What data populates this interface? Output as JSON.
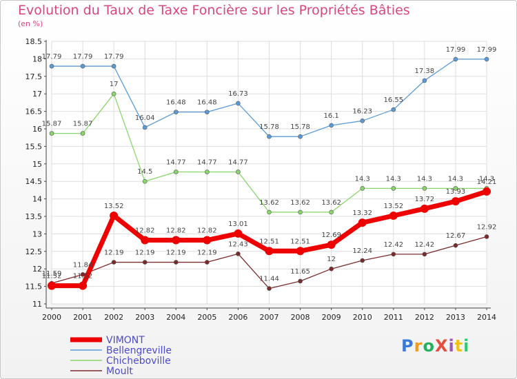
{
  "title": "Evolution du Taux de Taxe Foncière sur les Propriétés Bâties",
  "subtitle": "(en %)",
  "logo": "ProXiti",
  "chart_data": {
    "type": "line",
    "title": "Evolution du Taux de Taxe Foncière sur les Propriétés Bâties",
    "ylabel": "(en %)",
    "xlabel": "",
    "x": [
      "2000",
      "2001",
      "2002",
      "2003",
      "2004",
      "2005",
      "2006",
      "2007",
      "2008",
      "2009",
      "2010",
      "2011",
      "2012",
      "2013",
      "2014"
    ],
    "ylim": [
      11,
      18.5
    ],
    "yticks": [
      "11",
      "11.5",
      "12",
      "12.5",
      "13",
      "13.5",
      "14",
      "14.5",
      "15",
      "15.5",
      "16",
      "16.5",
      "17",
      "17.5",
      "18",
      "18.5"
    ],
    "grid": true,
    "legend_position": "bottom-left",
    "series": [
      {
        "name": "Moult",
        "color": "#7a2a2a",
        "values": [
          11.59,
          11.84,
          12.19,
          12.19,
          12.19,
          12.19,
          12.43,
          11.44,
          11.65,
          12,
          12.24,
          12.42,
          12.42,
          12.67,
          12.92
        ],
        "labels": [
          "11.59",
          "11.84",
          "12.19",
          "12.19",
          "12.19",
          "12.19",
          "12.43",
          "11.44",
          "11.65",
          "12",
          "12.24",
          "12.42",
          "12.42",
          "12.67",
          "12.92"
        ]
      },
      {
        "name": "Chicheboville",
        "color": "#88d66a",
        "values": [
          15.87,
          15.87,
          17,
          14.5,
          14.77,
          14.77,
          14.77,
          13.62,
          13.62,
          13.62,
          14.3,
          14.3,
          14.3,
          14.3,
          14.3
        ],
        "labels": [
          "15.87",
          "15.87",
          "17",
          "14.5",
          "14.77",
          "14.77",
          "14.77",
          "13.62",
          "13.62",
          "13.62",
          "14.3",
          "14.3",
          "14.3",
          "14.3",
          "14.3"
        ]
      },
      {
        "name": "Bellengreville",
        "color": "#5a9ad6",
        "values": [
          17.79,
          17.79,
          17.79,
          16.04,
          16.48,
          16.48,
          16.73,
          15.78,
          15.78,
          16.1,
          16.23,
          16.55,
          17.38,
          17.99,
          17.99
        ],
        "labels": [
          "17.79",
          "17.79",
          "17.79",
          "16.04",
          "16.48",
          "16.48",
          "16.73",
          "15.78",
          "15.78",
          "16.1",
          "16.23",
          "16.55",
          "17.38",
          "17.99",
          "17.99"
        ]
      },
      {
        "name": "VIMONT",
        "color": "#ee0000",
        "values": [
          11.52,
          11.52,
          13.52,
          12.82,
          12.82,
          12.82,
          13.01,
          12.51,
          12.51,
          12.69,
          13.32,
          13.52,
          13.72,
          13.93,
          14.21
        ],
        "labels": [
          "11.52",
          "11.52",
          "13.52",
          "12.82",
          "12.82",
          "12.82",
          "13.01",
          "12.51",
          "12.51",
          "12.69",
          "13.32",
          "13.52",
          "13.72",
          "13.93",
          "14.21"
        ]
      }
    ],
    "legend": [
      "VIMONT",
      "Bellengreville",
      "Chicheboville",
      "Moult"
    ]
  }
}
